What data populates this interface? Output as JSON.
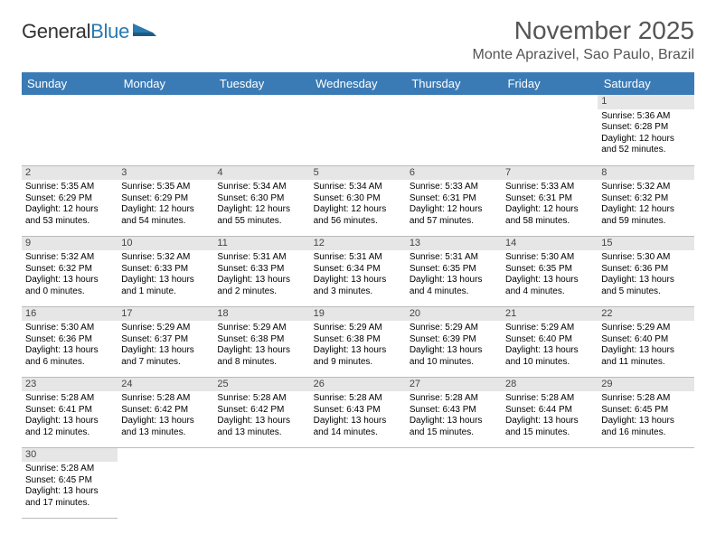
{
  "logo": {
    "word1": "General",
    "word2": "Blue"
  },
  "title": {
    "month": "November 2025",
    "location": "Monte Aprazivel, Sao Paulo, Brazil"
  },
  "colors": {
    "header_bg": "#3b7bb5",
    "header_text": "#ffffff",
    "daynum_bg": "#e6e6e6",
    "border": "#bbbbbb",
    "logo_blue": "#2a7ab0"
  },
  "daynames": [
    "Sunday",
    "Monday",
    "Tuesday",
    "Wednesday",
    "Thursday",
    "Friday",
    "Saturday"
  ],
  "weeks": [
    [
      {
        "n": "",
        "sr": "",
        "ss": "",
        "dl": ""
      },
      {
        "n": "",
        "sr": "",
        "ss": "",
        "dl": ""
      },
      {
        "n": "",
        "sr": "",
        "ss": "",
        "dl": ""
      },
      {
        "n": "",
        "sr": "",
        "ss": "",
        "dl": ""
      },
      {
        "n": "",
        "sr": "",
        "ss": "",
        "dl": ""
      },
      {
        "n": "",
        "sr": "",
        "ss": "",
        "dl": ""
      },
      {
        "n": "1",
        "sr": "Sunrise: 5:36 AM",
        "ss": "Sunset: 6:28 PM",
        "dl": "Daylight: 12 hours and 52 minutes."
      }
    ],
    [
      {
        "n": "2",
        "sr": "Sunrise: 5:35 AM",
        "ss": "Sunset: 6:29 PM",
        "dl": "Daylight: 12 hours and 53 minutes."
      },
      {
        "n": "3",
        "sr": "Sunrise: 5:35 AM",
        "ss": "Sunset: 6:29 PM",
        "dl": "Daylight: 12 hours and 54 minutes."
      },
      {
        "n": "4",
        "sr": "Sunrise: 5:34 AM",
        "ss": "Sunset: 6:30 PM",
        "dl": "Daylight: 12 hours and 55 minutes."
      },
      {
        "n": "5",
        "sr": "Sunrise: 5:34 AM",
        "ss": "Sunset: 6:30 PM",
        "dl": "Daylight: 12 hours and 56 minutes."
      },
      {
        "n": "6",
        "sr": "Sunrise: 5:33 AM",
        "ss": "Sunset: 6:31 PM",
        "dl": "Daylight: 12 hours and 57 minutes."
      },
      {
        "n": "7",
        "sr": "Sunrise: 5:33 AM",
        "ss": "Sunset: 6:31 PM",
        "dl": "Daylight: 12 hours and 58 minutes."
      },
      {
        "n": "8",
        "sr": "Sunrise: 5:32 AM",
        "ss": "Sunset: 6:32 PM",
        "dl": "Daylight: 12 hours and 59 minutes."
      }
    ],
    [
      {
        "n": "9",
        "sr": "Sunrise: 5:32 AM",
        "ss": "Sunset: 6:32 PM",
        "dl": "Daylight: 13 hours and 0 minutes."
      },
      {
        "n": "10",
        "sr": "Sunrise: 5:32 AM",
        "ss": "Sunset: 6:33 PM",
        "dl": "Daylight: 13 hours and 1 minute."
      },
      {
        "n": "11",
        "sr": "Sunrise: 5:31 AM",
        "ss": "Sunset: 6:33 PM",
        "dl": "Daylight: 13 hours and 2 minutes."
      },
      {
        "n": "12",
        "sr": "Sunrise: 5:31 AM",
        "ss": "Sunset: 6:34 PM",
        "dl": "Daylight: 13 hours and 3 minutes."
      },
      {
        "n": "13",
        "sr": "Sunrise: 5:31 AM",
        "ss": "Sunset: 6:35 PM",
        "dl": "Daylight: 13 hours and 4 minutes."
      },
      {
        "n": "14",
        "sr": "Sunrise: 5:30 AM",
        "ss": "Sunset: 6:35 PM",
        "dl": "Daylight: 13 hours and 4 minutes."
      },
      {
        "n": "15",
        "sr": "Sunrise: 5:30 AM",
        "ss": "Sunset: 6:36 PM",
        "dl": "Daylight: 13 hours and 5 minutes."
      }
    ],
    [
      {
        "n": "16",
        "sr": "Sunrise: 5:30 AM",
        "ss": "Sunset: 6:36 PM",
        "dl": "Daylight: 13 hours and 6 minutes."
      },
      {
        "n": "17",
        "sr": "Sunrise: 5:29 AM",
        "ss": "Sunset: 6:37 PM",
        "dl": "Daylight: 13 hours and 7 minutes."
      },
      {
        "n": "18",
        "sr": "Sunrise: 5:29 AM",
        "ss": "Sunset: 6:38 PM",
        "dl": "Daylight: 13 hours and 8 minutes."
      },
      {
        "n": "19",
        "sr": "Sunrise: 5:29 AM",
        "ss": "Sunset: 6:38 PM",
        "dl": "Daylight: 13 hours and 9 minutes."
      },
      {
        "n": "20",
        "sr": "Sunrise: 5:29 AM",
        "ss": "Sunset: 6:39 PM",
        "dl": "Daylight: 13 hours and 10 minutes."
      },
      {
        "n": "21",
        "sr": "Sunrise: 5:29 AM",
        "ss": "Sunset: 6:40 PM",
        "dl": "Daylight: 13 hours and 10 minutes."
      },
      {
        "n": "22",
        "sr": "Sunrise: 5:29 AM",
        "ss": "Sunset: 6:40 PM",
        "dl": "Daylight: 13 hours and 11 minutes."
      }
    ],
    [
      {
        "n": "23",
        "sr": "Sunrise: 5:28 AM",
        "ss": "Sunset: 6:41 PM",
        "dl": "Daylight: 13 hours and 12 minutes."
      },
      {
        "n": "24",
        "sr": "Sunrise: 5:28 AM",
        "ss": "Sunset: 6:42 PM",
        "dl": "Daylight: 13 hours and 13 minutes."
      },
      {
        "n": "25",
        "sr": "Sunrise: 5:28 AM",
        "ss": "Sunset: 6:42 PM",
        "dl": "Daylight: 13 hours and 13 minutes."
      },
      {
        "n": "26",
        "sr": "Sunrise: 5:28 AM",
        "ss": "Sunset: 6:43 PM",
        "dl": "Daylight: 13 hours and 14 minutes."
      },
      {
        "n": "27",
        "sr": "Sunrise: 5:28 AM",
        "ss": "Sunset: 6:43 PM",
        "dl": "Daylight: 13 hours and 15 minutes."
      },
      {
        "n": "28",
        "sr": "Sunrise: 5:28 AM",
        "ss": "Sunset: 6:44 PM",
        "dl": "Daylight: 13 hours and 15 minutes."
      },
      {
        "n": "29",
        "sr": "Sunrise: 5:28 AM",
        "ss": "Sunset: 6:45 PM",
        "dl": "Daylight: 13 hours and 16 minutes."
      }
    ],
    [
      {
        "n": "30",
        "sr": "Sunrise: 5:28 AM",
        "ss": "Sunset: 6:45 PM",
        "dl": "Daylight: 13 hours and 17 minutes."
      },
      {
        "n": "",
        "sr": "",
        "ss": "",
        "dl": ""
      },
      {
        "n": "",
        "sr": "",
        "ss": "",
        "dl": ""
      },
      {
        "n": "",
        "sr": "",
        "ss": "",
        "dl": ""
      },
      {
        "n": "",
        "sr": "",
        "ss": "",
        "dl": ""
      },
      {
        "n": "",
        "sr": "",
        "ss": "",
        "dl": ""
      },
      {
        "n": "",
        "sr": "",
        "ss": "",
        "dl": ""
      }
    ]
  ]
}
